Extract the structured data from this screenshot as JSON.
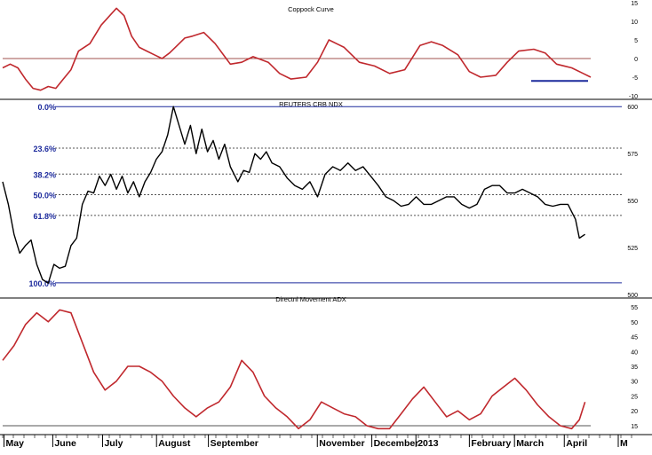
{
  "colors": {
    "coppock": "#c0282d",
    "price": "#000000",
    "adx": "#c0282d",
    "fib_label": "#1c2a9c",
    "fib_solid": "#1c2a9c",
    "dotted": "#555555",
    "zero_line": "#a0524e",
    "panel_border": "#000000"
  },
  "chart_data": [
    {
      "type": "line",
      "title": "Coppock Curve",
      "ylim": [
        -10,
        15
      ],
      "y_ticks": [
        "15",
        "10",
        "5",
        "0",
        "-5",
        "-10"
      ],
      "y_tick_values": [
        15,
        10,
        5,
        0,
        -5,
        -10
      ],
      "reference_lines": [
        {
          "y": 0,
          "style": "solid"
        }
      ],
      "support_line": {
        "x_start": 13.93,
        "x_end": 15.43,
        "y": -6
      },
      "series": [
        {
          "x": [
            0,
            0.2,
            0.4,
            0.6,
            0.8,
            1.0,
            1.2,
            1.4,
            1.6,
            1.8,
            2.0,
            2.3,
            2.6,
            3.0,
            3.2,
            3.4,
            3.6,
            3.8,
            4.0,
            4.2,
            4.4,
            4.6,
            4.8,
            5.0,
            5.3,
            5.6,
            6.0,
            6.3,
            6.6,
            7.0,
            7.3,
            7.6,
            8.0,
            8.3,
            8.6,
            9.0,
            9.4,
            9.8,
            10.2,
            10.6,
            11.0,
            11.3,
            11.6,
            12.0,
            12.3,
            12.6,
            13.0,
            13.3,
            13.6,
            14.0,
            14.3,
            14.6,
            15.0,
            15.3,
            15.5
          ],
          "y": [
            -2.5,
            -1.5,
            -2.5,
            -5.5,
            -8,
            -8.5,
            -7.5,
            -8,
            -5.5,
            -3,
            2,
            4,
            9,
            13.5,
            11.5,
            6,
            3,
            2,
            1,
            0,
            1.5,
            3.5,
            5.5,
            6,
            7,
            4,
            -1.5,
            -1,
            0.5,
            -1,
            -4,
            -5.5,
            -5,
            -1,
            5,
            3,
            -1,
            -2,
            -4,
            -3,
            3.5,
            4.5,
            3.5,
            1,
            -3.5,
            -5,
            -4.5,
            -1,
            2,
            2.5,
            1.5,
            -1.5,
            -2.5,
            -4,
            -5
          ]
        }
      ]
    },
    {
      "type": "line",
      "title": "REUTERS CRB NDX",
      "ylim": [
        500,
        602
      ],
      "y_ticks": [
        "600",
        "575",
        "550",
        "525",
        "500"
      ],
      "y_tick_values": [
        600,
        575,
        550,
        525,
        500
      ],
      "fib_levels": [
        {
          "label": "0.0%",
          "value": 600,
          "style": "solid"
        },
        {
          "label": "23.6%",
          "value": 577.9,
          "style": "dotted"
        },
        {
          "label": "38.2%",
          "value": 564.1,
          "style": "dotted"
        },
        {
          "label": "50.0%",
          "value": 553.1,
          "style": "dotted"
        },
        {
          "label": "61.8%",
          "value": 542.1,
          "style": "dotted"
        },
        {
          "label": "100.0%",
          "value": 506.2,
          "style": "solid"
        }
      ],
      "series": [
        {
          "x": [
            0,
            0.15,
            0.3,
            0.45,
            0.6,
            0.75,
            0.9,
            1.05,
            1.2,
            1.35,
            1.5,
            1.65,
            1.8,
            1.95,
            2.1,
            2.25,
            2.4,
            2.55,
            2.7,
            2.85,
            3.0,
            3.15,
            3.3,
            3.45,
            3.6,
            3.75,
            3.9,
            4.05,
            4.2,
            4.35,
            4.5,
            4.65,
            4.8,
            4.95,
            5.1,
            5.25,
            5.4,
            5.55,
            5.7,
            5.85,
            6.0,
            6.2,
            6.35,
            6.5,
            6.65,
            6.8,
            6.95,
            7.1,
            7.3,
            7.5,
            7.7,
            7.9,
            8.1,
            8.3,
            8.5,
            8.7,
            8.9,
            9.1,
            9.3,
            9.5,
            9.7,
            9.9,
            10.1,
            10.3,
            10.5,
            10.7,
            10.9,
            11.1,
            11.3,
            11.5,
            11.7,
            11.9,
            12.1,
            12.3,
            12.5,
            12.7,
            12.9,
            13.1,
            13.3,
            13.5,
            13.7,
            13.9,
            14.1,
            14.3,
            14.5,
            14.7,
            14.9,
            15.0,
            15.1,
            15.2,
            15.35
          ],
          "y": [
            560,
            548,
            532,
            522,
            526,
            529,
            516,
            508,
            506,
            516,
            514,
            515,
            526,
            530,
            548,
            555,
            554,
            563,
            558,
            564,
            556,
            563,
            554,
            560,
            552,
            560,
            565,
            572,
            576,
            585,
            600,
            590,
            580,
            590,
            575,
            588,
            576,
            582,
            572,
            580,
            568,
            560,
            566,
            565,
            575,
            572,
            576,
            570,
            568,
            562,
            558,
            556,
            560,
            552,
            564,
            568,
            566,
            570,
            566,
            568,
            563,
            558,
            552,
            550,
            547,
            548,
            552,
            548,
            548,
            550,
            552,
            552,
            548,
            546,
            548,
            556,
            558,
            558,
            554,
            554,
            556,
            554,
            552,
            548,
            547,
            548,
            548,
            544,
            540,
            530,
            532
          ]
        }
      ]
    },
    {
      "type": "line",
      "title": "Directnl Movement ADX",
      "ylim": [
        12,
        58
      ],
      "y_ticks": [
        "55",
        "50",
        "45",
        "40",
        "35",
        "30",
        "25",
        "20",
        "15"
      ],
      "y_tick_values": [
        55,
        50,
        45,
        40,
        35,
        30,
        25,
        20,
        15
      ],
      "reference_lines": [
        {
          "y": 15,
          "style": "solid"
        }
      ],
      "series": [
        {
          "x": [
            0,
            0.3,
            0.6,
            0.9,
            1.2,
            1.5,
            1.8,
            2.1,
            2.4,
            2.7,
            3.0,
            3.3,
            3.6,
            3.9,
            4.2,
            4.5,
            4.8,
            5.1,
            5.4,
            5.7,
            6.0,
            6.3,
            6.6,
            6.9,
            7.2,
            7.5,
            7.8,
            8.1,
            8.4,
            8.7,
            9.0,
            9.3,
            9.6,
            9.9,
            10.2,
            10.5,
            10.8,
            11.1,
            11.4,
            11.7,
            12.0,
            12.3,
            12.6,
            12.9,
            13.2,
            13.5,
            13.8,
            14.1,
            14.4,
            14.7,
            15.0,
            15.2,
            15.35
          ],
          "y": [
            37,
            42,
            49,
            53,
            50,
            54,
            53,
            43,
            33,
            27,
            30,
            35,
            35,
            33,
            30,
            25,
            21,
            18,
            21,
            23,
            28,
            37,
            33,
            25,
            21,
            18,
            14,
            17,
            23,
            21,
            19,
            18,
            15,
            14,
            14,
            19,
            24,
            28,
            23,
            18,
            20,
            17,
            19,
            25,
            28,
            31,
            27,
            22,
            18,
            15,
            14,
            17,
            23
          ]
        }
      ]
    }
  ],
  "x_axis": {
    "labels": [
      "May",
      "June",
      "July",
      "August",
      "September",
      "November",
      "December",
      "2013",
      "February",
      "March",
      "April",
      "M"
    ],
    "positions": [
      0.06,
      1.0,
      1.96,
      3.0,
      4.0,
      6.1,
      7.15,
      8.0,
      9.03,
      9.9,
      10.86,
      11.9
    ]
  }
}
